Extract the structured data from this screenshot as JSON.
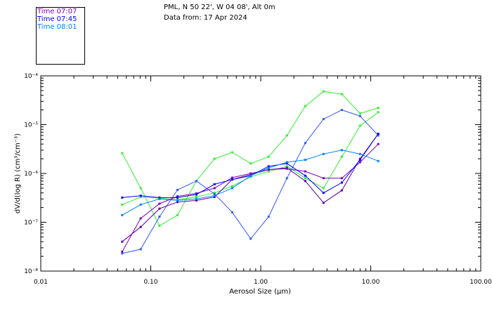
{
  "header": {
    "location": "PML, N 50 22', W 04 08', Alt 0m",
    "data_from": "Data from: 17 Apr 2024"
  },
  "chart_data": {
    "type": "line",
    "x_scale": "log",
    "y_scale": "log",
    "xlim": [
      0.01,
      100
    ],
    "ylim": [
      1e-08,
      0.0001
    ],
    "xlabel": "Aerosol Size (μm)",
    "ylabel": "dV/d(log R) (cm³/cm⁻³)",
    "x_ticks": [
      "0.01",
      "0.10",
      "1.00",
      "10.00",
      "100.00"
    ],
    "y_ticks": [
      "10⁻⁸",
      "10⁻⁷",
      "10⁻⁶",
      "10⁻⁵",
      "10⁻⁴"
    ],
    "legend_position": "top-left",
    "series": [
      {
        "name": "Time 07:07",
        "color": "#7f00bf",
        "x": [
          0.055,
          0.081,
          0.12,
          0.175,
          0.26,
          0.38,
          0.55,
          0.81,
          1.18,
          1.73,
          2.54,
          3.72,
          5.46,
          8.0,
          11.7
        ],
        "y": [
          2.5e-08,
          1.2e-07,
          2.4e-07,
          3.4e-07,
          3.9e-07,
          5e-07,
          8.2e-07,
          1e-06,
          1.2e-06,
          1.25e-06,
          1.1e-06,
          8e-07,
          8e-07,
          1.7e-06,
          4e-06
        ]
      },
      {
        "name": "Time 07:45",
        "color": "#0000ff",
        "x": [
          0.055,
          0.081,
          0.12,
          0.175,
          0.26,
          0.38,
          0.55,
          0.81,
          1.18,
          1.73,
          2.54,
          3.72,
          5.46,
          8.0,
          11.7
        ],
        "y": [
          3.2e-07,
          3.5e-07,
          3.2e-07,
          3.2e-07,
          3.7e-07,
          6e-07,
          7.5e-07,
          9e-07,
          1.4e-06,
          1.6e-06,
          9e-07,
          4e-07,
          6.5e-07,
          1.9e-06,
          6.5e-06
        ]
      },
      {
        "name": "Time 08:01",
        "color": "#0080ff",
        "x": [
          0.055,
          0.081,
          0.12,
          0.175,
          0.26,
          0.38,
          0.55,
          0.81,
          1.18,
          1.73,
          2.54,
          3.72,
          5.46,
          8.0,
          11.7
        ],
        "y": [
          1.4e-07,
          2.3e-07,
          3e-07,
          2.8e-07,
          3e-07,
          3.5e-07,
          5e-07,
          9e-07,
          1.3e-06,
          1.7e-06,
          1.9e-06,
          2.5e-06,
          3e-06,
          2.5e-06,
          1.8e-06
        ]
      }
    ],
    "extra_traces": [
      {
        "color": "#33ee33",
        "x": [
          0.055,
          0.081,
          0.12,
          0.175,
          0.26,
          0.38,
          0.55,
          0.81,
          1.18,
          1.73,
          2.54,
          3.72,
          5.46,
          8.0,
          11.7
        ],
        "y": [
          2.6e-06,
          5e-07,
          8.5e-08,
          1.4e-07,
          7e-07,
          2e-06,
          2.7e-06,
          1.6e-06,
          2.2e-06,
          6e-06,
          2.4e-05,
          4.8e-05,
          4.2e-05,
          1.7e-05,
          2.2e-05
        ]
      },
      {
        "color": "#33ee33",
        "x": [
          0.055,
          0.081,
          0.12,
          0.175,
          0.26,
          0.38,
          0.55,
          0.81,
          1.18,
          1.73,
          2.54,
          3.72,
          5.46,
          8.0,
          11.7
        ],
        "y": [
          2.3e-07,
          3.3e-07,
          3.1e-07,
          2.9e-07,
          3.3e-07,
          4e-07,
          5.5e-07,
          8.5e-07,
          1.1e-06,
          1.4e-06,
          8e-07,
          5e-07,
          2.2e-06,
          9.5e-06,
          1.8e-05
        ]
      },
      {
        "color": "#3355ff",
        "x": [
          0.055,
          0.081,
          0.12,
          0.175,
          0.26,
          0.38,
          0.55,
          0.81,
          1.18,
          1.73,
          2.54,
          3.72,
          5.46,
          8.0,
          11.7
        ],
        "y": [
          2.3e-08,
          2.8e-08,
          1.3e-07,
          4.6e-07,
          7e-07,
          3.8e-07,
          1.6e-07,
          4.6e-08,
          1.3e-07,
          8e-07,
          4.2e-06,
          1.3e-05,
          2e-05,
          1.5e-05,
          6e-06
        ]
      },
      {
        "color": "#5a00a0",
        "x": [
          0.055,
          0.081,
          0.12,
          0.175,
          0.26,
          0.38,
          0.55,
          0.81,
          1.18,
          1.73,
          2.54,
          3.72,
          5.46,
          8.0,
          11.7
        ],
        "y": [
          4e-08,
          8e-08,
          1.9e-07,
          2.6e-07,
          2.8e-07,
          3.3e-07,
          7.5e-07,
          9.5e-07,
          1.2e-06,
          1.3e-06,
          7e-07,
          2.5e-07,
          4.5e-07,
          2e-06,
          6.5e-06
        ]
      }
    ]
  }
}
